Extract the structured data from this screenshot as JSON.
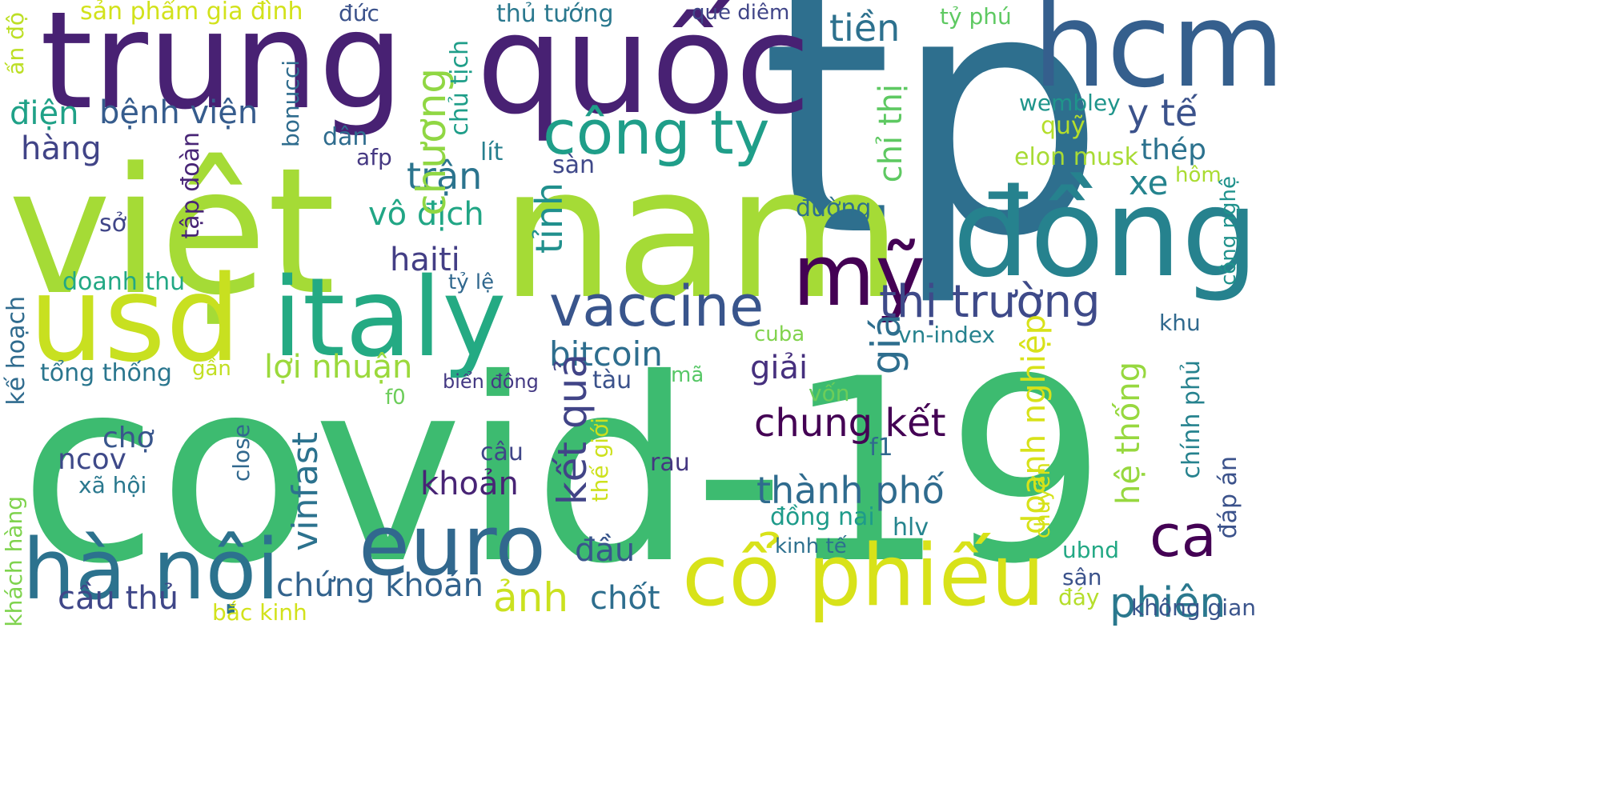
{
  "words": [
    {
      "text": "covid-19",
      "color": "#3dbb70"
    },
    {
      "text": "tp",
      "color": "#2e6f8e"
    },
    {
      "text": "việt",
      "color": "#a5db36"
    },
    {
      "text": "nam",
      "color": "#a5db36"
    },
    {
      "text": "trung",
      "color": "#482173"
    },
    {
      "text": "quốc",
      "color": "#482173"
    },
    {
      "text": "hcm",
      "color": "#355f8d"
    },
    {
      "text": "usd",
      "color": "#c8e020"
    },
    {
      "text": "italy",
      "color": "#24aa83"
    },
    {
      "text": "đồng",
      "color": "#26828e"
    },
    {
      "text": "cổ phiếu",
      "color": "#d8e219"
    },
    {
      "text": "euro",
      "color": "#31688e"
    },
    {
      "text": "hà nội",
      "color": "#2c728e"
    },
    {
      "text": "mỹ",
      "color": "#440154"
    },
    {
      "text": "công ty",
      "color": "#1f9e89"
    },
    {
      "text": "vaccine",
      "color": "#39558c"
    },
    {
      "text": "thị trường",
      "color": "#3e4a89"
    },
    {
      "text": "ca",
      "color": "#440154"
    },
    {
      "text": "phiên",
      "color": "#2a788e"
    },
    {
      "text": "chung kết",
      "color": "#440154"
    },
    {
      "text": "thành phố",
      "color": "#2f6b8e"
    },
    {
      "text": "bitcoin",
      "color": "#2e6e8e"
    },
    {
      "text": "lợi nhuận",
      "color": "#9bd93c"
    },
    {
      "text": "vô địch",
      "color": "#21a685"
    },
    {
      "text": "trận",
      "color": "#2b748e"
    },
    {
      "text": "bệnh viện",
      "color": "#365c8d"
    },
    {
      "text": "y tế",
      "color": "#3b528b"
    },
    {
      "text": "tiền",
      "color": "#2d718e"
    },
    {
      "text": "ảnh",
      "color": "#cae11f"
    },
    {
      "text": "cầu thủ",
      "color": "#3f4788"
    },
    {
      "text": "chứng khoán",
      "color": "#33638d"
    },
    {
      "text": "chốt",
      "color": "#2e6e8e"
    },
    {
      "text": "haiti",
      "color": "#433e85"
    },
    {
      "text": "giải",
      "color": "#46307e"
    },
    {
      "text": "xe",
      "color": "#25848e"
    },
    {
      "text": "thép",
      "color": "#2c728e"
    },
    {
      "text": "ncov",
      "color": "#3e4989"
    },
    {
      "text": "khoản",
      "color": "#482475"
    },
    {
      "text": "chợ",
      "color": "#39568c"
    },
    {
      "text": "đầu",
      "color": "#39568c"
    },
    {
      "text": "điện",
      "color": "#1fa187"
    },
    {
      "text": "hàng",
      "color": "#414487"
    },
    {
      "text": "tổng thống",
      "color": "#2a768e"
    },
    {
      "text": "doanh thu",
      "color": "#22a884"
    },
    {
      "text": "tàu",
      "color": "#3b528b"
    },
    {
      "text": "câu",
      "color": "#404688"
    },
    {
      "text": "rau",
      "color": "#453781"
    },
    {
      "text": "sàn",
      "color": "#3f4889"
    },
    {
      "text": "lít",
      "color": "#277f8e"
    },
    {
      "text": "afp",
      "color": "#453882"
    },
    {
      "text": "dân",
      "color": "#2f6c8e"
    },
    {
      "text": "sở",
      "color": "#404688"
    },
    {
      "text": "xã hội",
      "color": "#2a788e"
    },
    {
      "text": "đường",
      "color": "#2d708e"
    },
    {
      "text": "đồng nai",
      "color": "#1e9b8a"
    },
    {
      "text": "hlv",
      "color": "#25848e"
    },
    {
      "text": "f1",
      "color": "#30698e"
    },
    {
      "text": "vốn",
      "color": "#6ccd5a"
    },
    {
      "text": "mã",
      "color": "#57c766"
    },
    {
      "text": "f0",
      "color": "#6ccd5a"
    },
    {
      "text": "biển đông",
      "color": "#443983"
    },
    {
      "text": "gần",
      "color": "#c2df23"
    },
    {
      "text": "tỷ lệ",
      "color": "#31688e"
    },
    {
      "text": "cuba",
      "color": "#81d34d"
    },
    {
      "text": "vn-index",
      "color": "#26828e"
    },
    {
      "text": "khu",
      "color": "#30698e"
    },
    {
      "text": "quỹ",
      "color": "#b5de2b"
    },
    {
      "text": "elon musk",
      "color": "#a8db34"
    },
    {
      "text": "wembley",
      "color": "#1f958b"
    },
    {
      "text": "tỷ phú",
      "color": "#5ec962"
    },
    {
      "text": "thủ tướng",
      "color": "#2a788e"
    },
    {
      "text": "que diêm",
      "color": "#404588"
    },
    {
      "text": "sản phẩm gia đình",
      "color": "#d2e21b"
    },
    {
      "text": "đức",
      "color": "#3b528b"
    },
    {
      "text": "hôm",
      "color": "#aadc32"
    },
    {
      "text": "ubnd",
      "color": "#22a884"
    },
    {
      "text": "sân",
      "color": "#3b528b"
    },
    {
      "text": "đáy",
      "color": "#b5de2b"
    },
    {
      "text": "không gian",
      "color": "#3a548c"
    },
    {
      "text": "kinh tế",
      "color": "#2d708e"
    },
    {
      "text": "bắc kinh",
      "color": "#d2e21b"
    },
    {
      "text": "chương",
      "color": "#90d743"
    },
    {
      "text": "chỉ thị",
      "color": "#5ec962"
    },
    {
      "text": "tỉnh",
      "color": "#21908d"
    },
    {
      "text": "giá",
      "color": "#2e6e8e"
    },
    {
      "text": "kết quả",
      "color": "#414487"
    },
    {
      "text": "vinfast",
      "color": "#2c728e"
    },
    {
      "text": "tập đoàn",
      "color": "#482576"
    },
    {
      "text": "chủ tịch",
      "color": "#1f9e89"
    },
    {
      "text": "bonucci",
      "color": "#2f6c8e"
    },
    {
      "text": "kế hoạch",
      "color": "#2f6b8e"
    },
    {
      "text": "close",
      "color": "#31688e"
    },
    {
      "text": "thế giới",
      "color": "#cde11d"
    },
    {
      "text": "doanh nghiệp",
      "color": "#d8e219"
    },
    {
      "text": "hệ thống",
      "color": "#97d83f"
    },
    {
      "text": "chính phủ",
      "color": "#26828e"
    },
    {
      "text": "chuyển",
      "color": "#d5e21a"
    },
    {
      "text": "đáp án",
      "color": "#3b528b"
    },
    {
      "text": "công nghệ",
      "color": "#20928c"
    },
    {
      "text": "khách hàng",
      "color": "#7fd34e"
    },
    {
      "text": "ấn độ",
      "color": "#bddf26"
    }
  ]
}
